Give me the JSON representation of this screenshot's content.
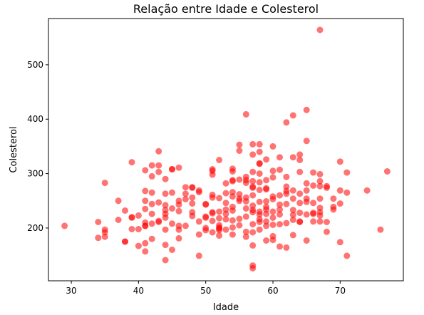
{
  "chart_data": {
    "type": "scatter",
    "title": "Relação entre Idade e Colesterol",
    "xlabel": "Idade",
    "ylabel": "Colesterol",
    "xlim": [
      26.6,
      79.4
    ],
    "ylim": [
      103,
      585
    ],
    "x_ticks": [
      30,
      40,
      50,
      60,
      70
    ],
    "y_ticks": [
      200,
      300,
      400,
      500
    ],
    "grid": false,
    "legend": "none",
    "marker_color": "#ff0000",
    "marker_alpha": 0.55,
    "points": [
      [
        29,
        204
      ],
      [
        34,
        182
      ],
      [
        34,
        211
      ],
      [
        35,
        283
      ],
      [
        35,
        184
      ],
      [
        35,
        197
      ],
      [
        35,
        192
      ],
      [
        37,
        250
      ],
      [
        37,
        215
      ],
      [
        38,
        232
      ],
      [
        38,
        175
      ],
      [
        38,
        175
      ],
      [
        39,
        220
      ],
      [
        39,
        321
      ],
      [
        39,
        198
      ],
      [
        39,
        219
      ],
      [
        40,
        223
      ],
      [
        40,
        167
      ],
      [
        40,
        198
      ],
      [
        41,
        306
      ],
      [
        41,
        268
      ],
      [
        41,
        235
      ],
      [
        41,
        250
      ],
      [
        41,
        204
      ],
      [
        41,
        172
      ],
      [
        41,
        157
      ],
      [
        41,
        210
      ],
      [
        41,
        204
      ],
      [
        42,
        295
      ],
      [
        42,
        315
      ],
      [
        42,
        265
      ],
      [
        42,
        244
      ],
      [
        42,
        226
      ],
      [
        42,
        208
      ],
      [
        42,
        180
      ],
      [
        43,
        341
      ],
      [
        43,
        303
      ],
      [
        43,
        315
      ],
      [
        43,
        247
      ],
      [
        43,
        213
      ],
      [
        43,
        211
      ],
      [
        44,
        290
      ],
      [
        44,
        263
      ],
      [
        44,
        242
      ],
      [
        44,
        233
      ],
      [
        44,
        226
      ],
      [
        44,
        219
      ],
      [
        44,
        197
      ],
      [
        44,
        169
      ],
      [
        44,
        141
      ],
      [
        45,
        308
      ],
      [
        45,
        308
      ],
      [
        45,
        265
      ],
      [
        45,
        236
      ],
      [
        45,
        208
      ],
      [
        45,
        160
      ],
      [
        46,
        311
      ],
      [
        46,
        243
      ],
      [
        46,
        231
      ],
      [
        46,
        250
      ],
      [
        46,
        204
      ],
      [
        46,
        181
      ],
      [
        46,
        197
      ],
      [
        47,
        275
      ],
      [
        47,
        253
      ],
      [
        47,
        263
      ],
      [
        47,
        204
      ],
      [
        48,
        274
      ],
      [
        48,
        256
      ],
      [
        48,
        229
      ],
      [
        48,
        222
      ],
      [
        48,
        245
      ],
      [
        48,
        275
      ],
      [
        49,
        266
      ],
      [
        49,
        269
      ],
      [
        49,
        212
      ],
      [
        49,
        149
      ],
      [
        49,
        188
      ],
      [
        50,
        200
      ],
      [
        50,
        196
      ],
      [
        50,
        243
      ],
      [
        50,
        221
      ],
      [
        50,
        219
      ],
      [
        50,
        244
      ],
      [
        51,
        305
      ],
      [
        51,
        298
      ],
      [
        51,
        308
      ],
      [
        51,
        261
      ],
      [
        51,
        256
      ],
      [
        51,
        229
      ],
      [
        51,
        227
      ],
      [
        51,
        213
      ],
      [
        51,
        192
      ],
      [
        52,
        325
      ],
      [
        52,
        255
      ],
      [
        52,
        230
      ],
      [
        52,
        218
      ],
      [
        52,
        205
      ],
      [
        52,
        199
      ],
      [
        52,
        196
      ],
      [
        52,
        186
      ],
      [
        52,
        201
      ],
      [
        53,
        282
      ],
      [
        53,
        264
      ],
      [
        53,
        246
      ],
      [
        53,
        234
      ],
      [
        53,
        226
      ],
      [
        53,
        216
      ],
      [
        53,
        197
      ],
      [
        54,
        309
      ],
      [
        54,
        304
      ],
      [
        54,
        288
      ],
      [
        54,
        286
      ],
      [
        54,
        266
      ],
      [
        54,
        258
      ],
      [
        54,
        239
      ],
      [
        54,
        232
      ],
      [
        54,
        214
      ],
      [
        54,
        188
      ],
      [
        54,
        201
      ],
      [
        55,
        353
      ],
      [
        55,
        342
      ],
      [
        55,
        289
      ],
      [
        55,
        262
      ],
      [
        55,
        254
      ],
      [
        55,
        250
      ],
      [
        55,
        217
      ],
      [
        55,
        205
      ],
      [
        56,
        409
      ],
      [
        56,
        294
      ],
      [
        56,
        288
      ],
      [
        56,
        283
      ],
      [
        56,
        256
      ],
      [
        56,
        249
      ],
      [
        56,
        236
      ],
      [
        56,
        221
      ],
      [
        56,
        193
      ],
      [
        56,
        184
      ],
      [
        57,
        354
      ],
      [
        57,
        335
      ],
      [
        57,
        303
      ],
      [
        57,
        286
      ],
      [
        57,
        276
      ],
      [
        57,
        274
      ],
      [
        57,
        260
      ],
      [
        57,
        241
      ],
      [
        57,
        233
      ],
      [
        57,
        229
      ],
      [
        57,
        207
      ],
      [
        57,
        192
      ],
      [
        57,
        168
      ],
      [
        57,
        131
      ],
      [
        57,
        126
      ],
      [
        58,
        354
      ],
      [
        58,
        340
      ],
      [
        58,
        319
      ],
      [
        58,
        318
      ],
      [
        58,
        300
      ],
      [
        58,
        284
      ],
      [
        58,
        270
      ],
      [
        58,
        248
      ],
      [
        58,
        230
      ],
      [
        58,
        225
      ],
      [
        58,
        216
      ],
      [
        58,
        211
      ],
      [
        58,
        197
      ],
      [
        59,
        326
      ],
      [
        59,
        288
      ],
      [
        59,
        273
      ],
      [
        59,
        271
      ],
      [
        59,
        249
      ],
      [
        59,
        239
      ],
      [
        59,
        234
      ],
      [
        59,
        226
      ],
      [
        59,
        212
      ],
      [
        59,
        204
      ],
      [
        59,
        177
      ],
      [
        60,
        350
      ],
      [
        60,
        305
      ],
      [
        60,
        293
      ],
      [
        60,
        258
      ],
      [
        60,
        253
      ],
      [
        60,
        230
      ],
      [
        60,
        219
      ],
      [
        60,
        206
      ],
      [
        60,
        185
      ],
      [
        60,
        178
      ],
      [
        61,
        330
      ],
      [
        61,
        307
      ],
      [
        61,
        260
      ],
      [
        61,
        243
      ],
      [
        61,
        234
      ],
      [
        61,
        225
      ],
      [
        61,
        207
      ],
      [
        61,
        166
      ],
      [
        62,
        394
      ],
      [
        62,
        294
      ],
      [
        62,
        276
      ],
      [
        62,
        268
      ],
      [
        62,
        263
      ],
      [
        62,
        244
      ],
      [
        62,
        209
      ],
      [
        62,
        164
      ],
      [
        63,
        407
      ],
      [
        63,
        330
      ],
      [
        63,
        254
      ],
      [
        63,
        269
      ],
      [
        63,
        233
      ],
      [
        63,
        224
      ],
      [
        63,
        215
      ],
      [
        63,
        187
      ],
      [
        64,
        335
      ],
      [
        64,
        325
      ],
      [
        64,
        303
      ],
      [
        64,
        263
      ],
      [
        64,
        246
      ],
      [
        64,
        228
      ],
      [
        64,
        212
      ],
      [
        64,
        211
      ],
      [
        65,
        417
      ],
      [
        65,
        360
      ],
      [
        65,
        282
      ],
      [
        65,
        269
      ],
      [
        65,
        254
      ],
      [
        65,
        248
      ],
      [
        65,
        225
      ],
      [
        65,
        177
      ],
      [
        66,
        302
      ],
      [
        66,
        278
      ],
      [
        66,
        246
      ],
      [
        66,
        228
      ],
      [
        66,
        226
      ],
      [
        66,
        212
      ],
      [
        67,
        564
      ],
      [
        67,
        299
      ],
      [
        67,
        286
      ],
      [
        67,
        277
      ],
      [
        67,
        254
      ],
      [
        67,
        237
      ],
      [
        67,
        229
      ],
      [
        67,
        223
      ],
      [
        67,
        212
      ],
      [
        68,
        274
      ],
      [
        68,
        277
      ],
      [
        68,
        211
      ],
      [
        68,
        193
      ],
      [
        69,
        254
      ],
      [
        69,
        239
      ],
      [
        69,
        234
      ],
      [
        70,
        322
      ],
      [
        70,
        245
      ],
      [
        70,
        269
      ],
      [
        70,
        174
      ],
      [
        71,
        302
      ],
      [
        71,
        265
      ],
      [
        71,
        149
      ],
      [
        74,
        269
      ],
      [
        76,
        197
      ],
      [
        77,
        304
      ]
    ]
  }
}
